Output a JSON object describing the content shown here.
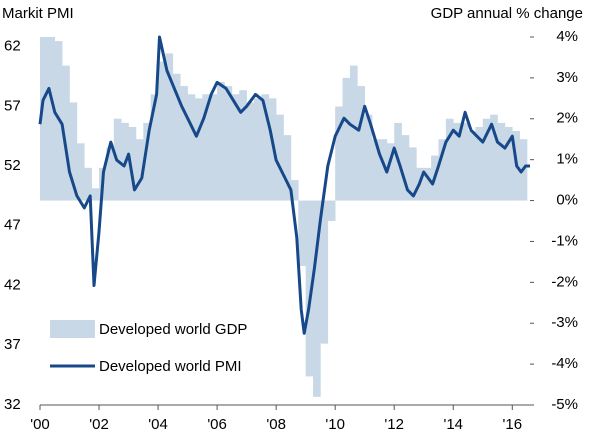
{
  "chart_data": {
    "type": "bar-line",
    "y_label": "Markit PMI",
    "y2_label": "GDP annual % change",
    "xlim": [
      2000,
      2016.6
    ],
    "xticks": [
      {
        "value": 2000,
        "label": "'00"
      },
      {
        "value": 2002,
        "label": "'02"
      },
      {
        "value": 2004,
        "label": "'04"
      },
      {
        "value": 2006,
        "label": "'06"
      },
      {
        "value": 2008,
        "label": "'08"
      },
      {
        "value": 2010,
        "label": "'10"
      },
      {
        "value": 2012,
        "label": "'12"
      },
      {
        "value": 2014,
        "label": "'14"
      },
      {
        "value": 2016,
        "label": "'16"
      }
    ],
    "ylim": [
      32,
      62.8
    ],
    "yticks": [
      32,
      37,
      42,
      47,
      52,
      57,
      62
    ],
    "y2lim": [
      -5,
      4
    ],
    "y2ticks": [
      {
        "value": -5,
        "label": "-5%"
      },
      {
        "value": -4,
        "label": "-4%"
      },
      {
        "value": -3,
        "label": "-3%"
      },
      {
        "value": -2,
        "label": "-2%"
      },
      {
        "value": -1,
        "label": "-1%"
      },
      {
        "value": 0,
        "label": "0%"
      },
      {
        "value": 1,
        "label": "1%"
      },
      {
        "value": 2,
        "label": "2%"
      },
      {
        "value": 3,
        "label": "3%"
      },
      {
        "value": 4,
        "label": "4%"
      }
    ],
    "legend": "lower left",
    "series": [
      {
        "name": "Developed world GDP",
        "type": "bar",
        "axis": "y2",
        "color": "#c8d8e6",
        "x": [
          2000,
          2000.25,
          2000.5,
          2000.75,
          2001,
          2001.25,
          2001.5,
          2001.75,
          2002,
          2002.25,
          2002.5,
          2002.75,
          2003,
          2003.25,
          2003.5,
          2003.75,
          2004,
          2004.25,
          2004.5,
          2004.75,
          2005,
          2005.25,
          2005.5,
          2005.75,
          2006,
          2006.25,
          2006.5,
          2006.75,
          2007,
          2007.25,
          2007.5,
          2007.75,
          2008,
          2008.25,
          2008.5,
          2008.75,
          2009,
          2009.25,
          2009.5,
          2009.75,
          2010,
          2010.25,
          2010.5,
          2010.75,
          2011,
          2011.25,
          2011.5,
          2011.75,
          2012,
          2012.25,
          2012.5,
          2012.75,
          2013,
          2013.25,
          2013.5,
          2013.75,
          2014,
          2014.25,
          2014.5,
          2014.75,
          2015,
          2015.25,
          2015.5,
          2015.75,
          2016,
          2016.25
        ],
        "values": [
          4.0,
          4.0,
          3.9,
          3.3,
          2.4,
          1.4,
          0.8,
          0.3,
          0.8,
          1.3,
          2.0,
          1.9,
          1.8,
          1.5,
          1.9,
          2.6,
          3.4,
          3.6,
          3.1,
          2.8,
          2.6,
          2.5,
          2.6,
          2.6,
          2.9,
          2.8,
          2.6,
          2.7,
          2.4,
          2.5,
          2.6,
          2.5,
          2.1,
          1.6,
          0.5,
          -1.6,
          -4.3,
          -4.8,
          -3.5,
          -0.5,
          2.3,
          3.0,
          3.3,
          2.8,
          2.1,
          1.5,
          1.5,
          1.4,
          1.9,
          1.6,
          1.3,
          0.8,
          0.8,
          1.1,
          1.5,
          2.0,
          1.9,
          1.9,
          1.7,
          1.8,
          2.0,
          2.1,
          1.9,
          1.8,
          1.7,
          1.5
        ]
      },
      {
        "name": "Developed world PMI",
        "type": "line",
        "color": "#17498a",
        "x": [
          2000.0,
          2000.1,
          2000.3,
          2000.5,
          2000.75,
          2001.0,
          2001.25,
          2001.5,
          2001.7,
          2001.83,
          2002.0,
          2002.15,
          2002.4,
          2002.6,
          2002.85,
          2003.0,
          2003.2,
          2003.45,
          2003.7,
          2003.95,
          2004.05,
          2004.3,
          2004.55,
          2004.8,
          2005.0,
          2005.3,
          2005.55,
          2005.8,
          2006.0,
          2006.3,
          2006.55,
          2006.8,
          2007.0,
          2007.3,
          2007.55,
          2007.8,
          2008.0,
          2008.3,
          2008.5,
          2008.7,
          2008.85,
          2008.95,
          2009.1,
          2009.3,
          2009.5,
          2009.75,
          2010.0,
          2010.3,
          2010.5,
          2010.8,
          2011.0,
          2011.2,
          2011.5,
          2011.75,
          2012.0,
          2012.2,
          2012.45,
          2012.65,
          2012.85,
          2013.0,
          2013.3,
          2013.5,
          2013.75,
          2014.0,
          2014.2,
          2014.4,
          2014.6,
          2014.8,
          2015.0,
          2015.3,
          2015.5,
          2015.75,
          2016.0,
          2016.15,
          2016.3,
          2016.45,
          2016.6
        ],
        "values": [
          55.5,
          57.5,
          58.5,
          56.5,
          55.5,
          51.5,
          49.5,
          48.5,
          49.5,
          42.0,
          46.5,
          51.5,
          54.0,
          52.5,
          52.0,
          53.0,
          50.0,
          51.0,
          55.0,
          58.0,
          62.8,
          60.0,
          58.5,
          57.0,
          56.0,
          54.5,
          56.0,
          58.0,
          59.0,
          58.5,
          57.5,
          56.5,
          57.0,
          58.0,
          57.5,
          55.0,
          52.5,
          51.0,
          50.0,
          46.0,
          40.0,
          38.0,
          40.0,
          43.5,
          47.5,
          52.0,
          54.5,
          56.0,
          55.5,
          55.0,
          57.0,
          55.5,
          53.0,
          51.5,
          53.5,
          52.0,
          50.0,
          49.5,
          50.5,
          51.5,
          50.5,
          52.0,
          54.0,
          55.0,
          54.5,
          56.5,
          55.0,
          54.5,
          54.0,
          55.5,
          54.0,
          53.5,
          54.5,
          52.0,
          51.5,
          52.0,
          52.0
        ]
      }
    ]
  }
}
